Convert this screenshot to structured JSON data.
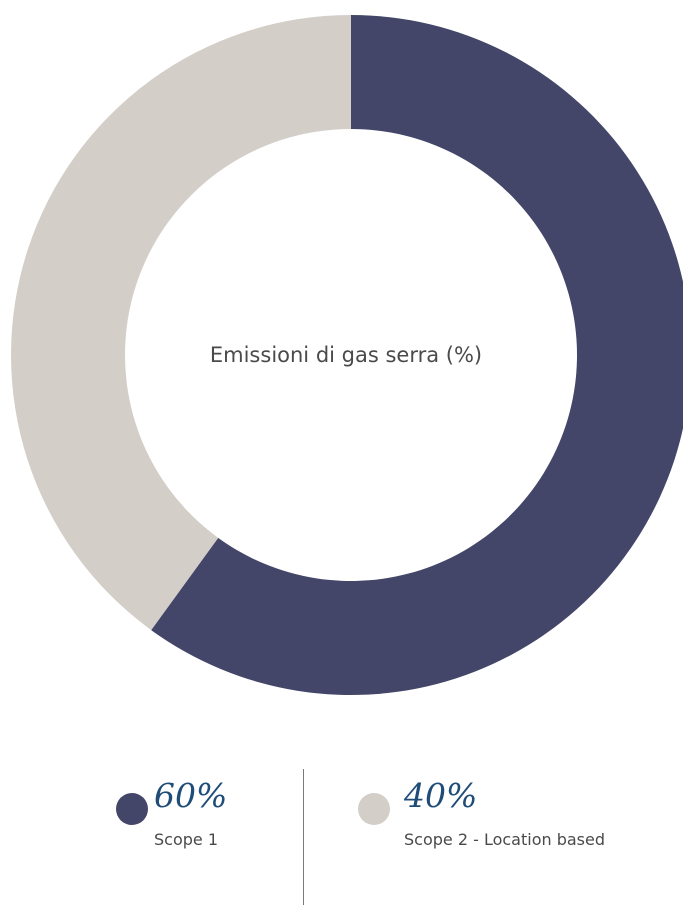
{
  "chart_data": {
    "type": "pie",
    "title": "Emissioni di gas serra (%)",
    "categories": [
      "Scope 1",
      "Scope 2 - Location based"
    ],
    "values": [
      60,
      40
    ],
    "value_labels": [
      "60%",
      "40%"
    ],
    "colors": [
      "#434668",
      "#d4cec9"
    ],
    "value_color": "#1f4d78",
    "hole": "donut",
    "legend_placement": "bottom"
  }
}
